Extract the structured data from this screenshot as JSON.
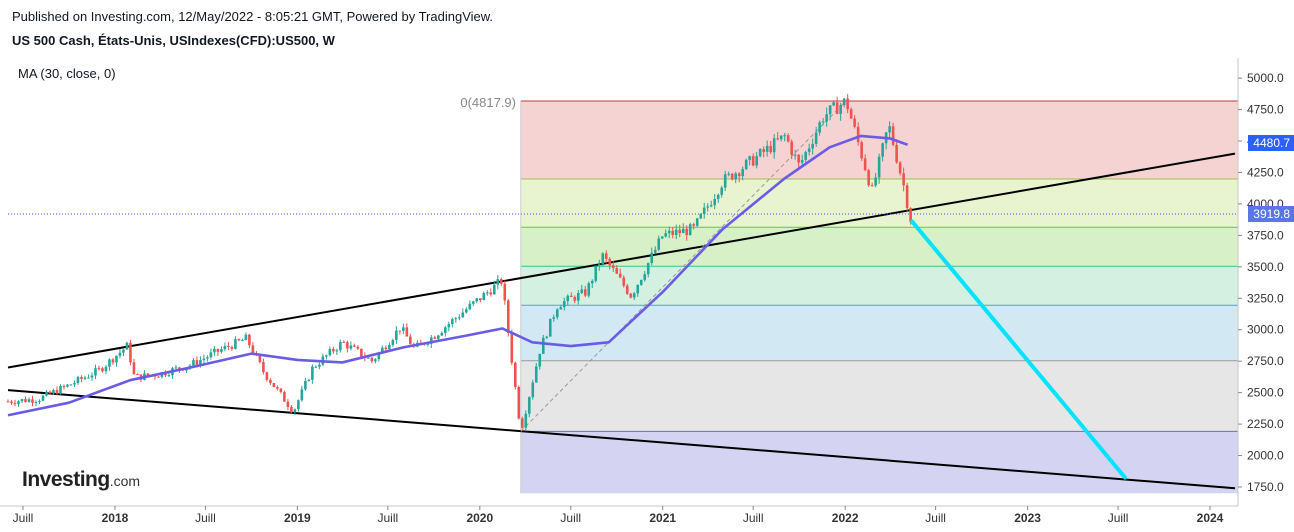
{
  "header": {
    "published": "Published on Investing.com, 12/May/2022 - 8:05:21 GMT, Powered by TradingView.",
    "instrument": "US 500 Cash, États-Unis, USIndexes(CFD):US500, W"
  },
  "indicator": {
    "label": "MA (30, close, 0)"
  },
  "logo": {
    "word": "Investing",
    "suffix": ".com"
  },
  "price_badges": [
    {
      "label": "4480.7",
      "color": "#2962ff"
    },
    {
      "label": "3919.8",
      "color": "#5b76e8"
    }
  ],
  "colors": {
    "candle_up": "#26a69a",
    "candle_down": "#ef5350",
    "ma_line": "#6a5ce6",
    "projection": "#00e5ff",
    "trendline": "#000000"
  },
  "chart_data": {
    "type": "line",
    "subtype": "candlestick",
    "ylim": [
      1700,
      5100
    ],
    "y_ticks": [
      "1750.0",
      "2000.0",
      "2250.0",
      "2500.0",
      "2750.0",
      "3000.0",
      "3250.0",
      "3500.0",
      "3750.0",
      "4000.0",
      "4250.0",
      "4500.0",
      "4750.0",
      "5000.0"
    ],
    "x_ticks": [
      "Juill",
      "2018",
      "Juill",
      "2019",
      "Juill",
      "2020",
      "Juill",
      "2021",
      "Juill",
      "2022",
      "Juill",
      "2023",
      "Juill",
      "2024"
    ],
    "fib_retracement": {
      "label": "0(4817.9)",
      "from_date": "2020-03-23",
      "low": 2191.9,
      "high": 4817.9,
      "levels": [
        0,
        0.236,
        0.382,
        0.5,
        0.618,
        0.786,
        1
      ]
    },
    "series": [
      {
        "type": "candlestick",
        "points": [
          [
            "2017-06-01",
            2430
          ],
          [
            "2017-08-01",
            2450
          ],
          [
            "2017-10-01",
            2560
          ],
          [
            "2017-12-01",
            2680
          ],
          [
            "2018-01-26",
            2872
          ],
          [
            "2018-02-09",
            2620
          ],
          [
            "2018-04-01",
            2650
          ],
          [
            "2018-06-01",
            2720
          ],
          [
            "2018-08-01",
            2840
          ],
          [
            "2018-09-21",
            2930
          ],
          [
            "2018-10-26",
            2660
          ],
          [
            "2018-12-24",
            2350
          ],
          [
            "2019-02-01",
            2700
          ],
          [
            "2019-04-01",
            2900
          ],
          [
            "2019-05-31",
            2750
          ],
          [
            "2019-07-26",
            3020
          ],
          [
            "2019-08-23",
            2850
          ],
          [
            "2019-10-01",
            2950
          ],
          [
            "2019-12-01",
            3150
          ],
          [
            "2020-02-14",
            3390
          ],
          [
            "2020-03-23",
            2192
          ],
          [
            "2020-05-01",
            2850
          ],
          [
            "2020-06-05",
            3200
          ],
          [
            "2020-08-01",
            3300
          ],
          [
            "2020-09-02",
            3590
          ],
          [
            "2020-10-30",
            3270
          ],
          [
            "2021-01-01",
            3750
          ],
          [
            "2021-03-04",
            3800
          ],
          [
            "2021-05-01",
            4180
          ],
          [
            "2021-07-01",
            4350
          ],
          [
            "2021-09-03",
            4540
          ],
          [
            "2021-10-01",
            4300
          ],
          [
            "2021-11-19",
            4700
          ],
          [
            "2022-01-03",
            4818
          ],
          [
            "2022-02-24",
            4100
          ],
          [
            "2022-03-29",
            4630
          ],
          [
            "2022-04-29",
            4130
          ],
          [
            "2022-05-12",
            3880
          ]
        ]
      },
      {
        "name": "MA (30, close, 0)",
        "points": [
          [
            "2017-06-01",
            2320
          ],
          [
            "2017-10-01",
            2420
          ],
          [
            "2018-02-01",
            2600
          ],
          [
            "2018-06-01",
            2700
          ],
          [
            "2018-10-01",
            2810
          ],
          [
            "2019-01-01",
            2760
          ],
          [
            "2019-04-01",
            2740
          ],
          [
            "2019-08-01",
            2860
          ],
          [
            "2019-12-01",
            2950
          ],
          [
            "2020-02-15",
            3010
          ],
          [
            "2020-04-15",
            2900
          ],
          [
            "2020-07-01",
            2870
          ],
          [
            "2020-09-15",
            2900
          ],
          [
            "2021-01-01",
            3300
          ],
          [
            "2021-05-01",
            3800
          ],
          [
            "2021-09-01",
            4200
          ],
          [
            "2021-12-01",
            4450
          ],
          [
            "2022-02-01",
            4540
          ],
          [
            "2022-04-01",
            4520
          ],
          [
            "2022-05-06",
            4470
          ]
        ]
      },
      {
        "name": "Upper trendline",
        "points": [
          [
            "2017-06-01",
            2700
          ],
          [
            "2024-02-20",
            4400
          ]
        ]
      },
      {
        "name": "Lower trendline",
        "points": [
          [
            "2017-06-01",
            2520
          ],
          [
            "2024-02-20",
            1740
          ]
        ]
      },
      {
        "name": "Projection",
        "points": [
          [
            "2022-05-15",
            3860
          ],
          [
            "2023-07-15",
            1825
          ]
        ]
      }
    ]
  }
}
